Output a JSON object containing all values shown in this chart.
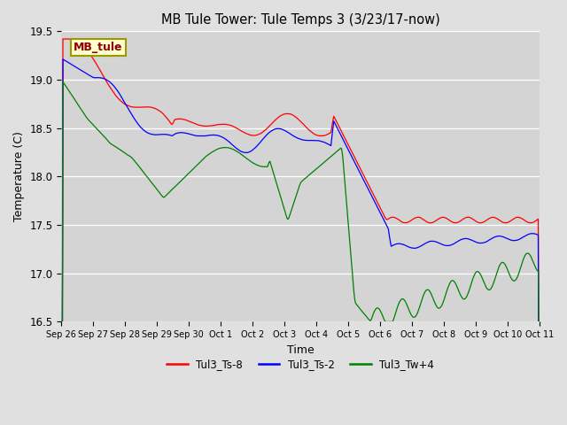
{
  "title": "MB Tule Tower: Tule Temps 3 (3/23/17-now)",
  "xlabel": "Time",
  "ylabel": "Temperature (C)",
  "ylim": [
    16.5,
    19.5
  ],
  "fig_bg": "#e0e0e0",
  "plot_bg": "#d4d4d4",
  "legend_label": "MB_tule",
  "series": [
    "Tul3_Ts-8",
    "Tul3_Ts-2",
    "Tul3_Tw+4"
  ],
  "colors": [
    "red",
    "blue",
    "green"
  ],
  "xtick_labels": [
    "Sep 26",
    "Sep 27",
    "Sep 28",
    "Sep 29",
    "Sep 30",
    "Oct 1",
    "Oct 2",
    "Oct 3",
    "Oct 4",
    "Oct 5",
    "Oct 6",
    "Oct 7",
    "Oct 8",
    "Oct 9",
    "Oct 10",
    "Oct 11"
  ],
  "ytick_vals": [
    16.5,
    17.0,
    17.5,
    18.0,
    18.5,
    19.0,
    19.5
  ],
  "n_points": 2000,
  "seed": 42
}
